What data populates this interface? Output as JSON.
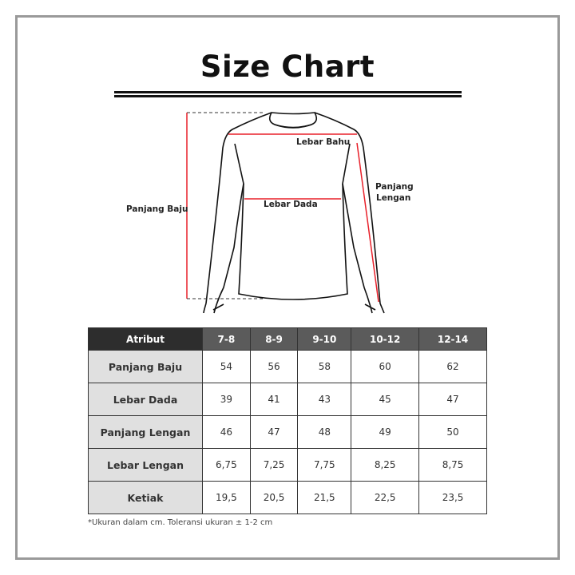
{
  "title": "Size Chart",
  "diagram": {
    "labels": {
      "panjang_baju": "Panjang Baju",
      "lebar_bahu": "Lebar Bahu",
      "lebar_dada": "Lebar Dada",
      "panjang_lengan_1": "Panjang",
      "panjang_lengan_2": "Lengan"
    },
    "measure_color": "#e8202a"
  },
  "table": {
    "headers": [
      "Atribut",
      "7-8",
      "8-9",
      "9-10",
      "10-12",
      "12-14"
    ],
    "rows": [
      {
        "label": "Panjang Baju",
        "values": [
          "54",
          "56",
          "58",
          "60",
          "62"
        ]
      },
      {
        "label": "Lebar Dada",
        "values": [
          "39",
          "41",
          "43",
          "45",
          "47"
        ]
      },
      {
        "label": "Panjang Lengan",
        "values": [
          "46",
          "47",
          "48",
          "49",
          "50"
        ]
      },
      {
        "label": "Lebar Lengan",
        "values": [
          "6,75",
          "7,25",
          "7,75",
          "8,25",
          "8,75"
        ]
      },
      {
        "label": "Ketiak",
        "values": [
          "19,5",
          "20,5",
          "21,5",
          "22,5",
          "23,5"
        ]
      }
    ]
  },
  "note": "*Ukuran dalam cm. Toleransi ukuran ± 1-2 cm"
}
